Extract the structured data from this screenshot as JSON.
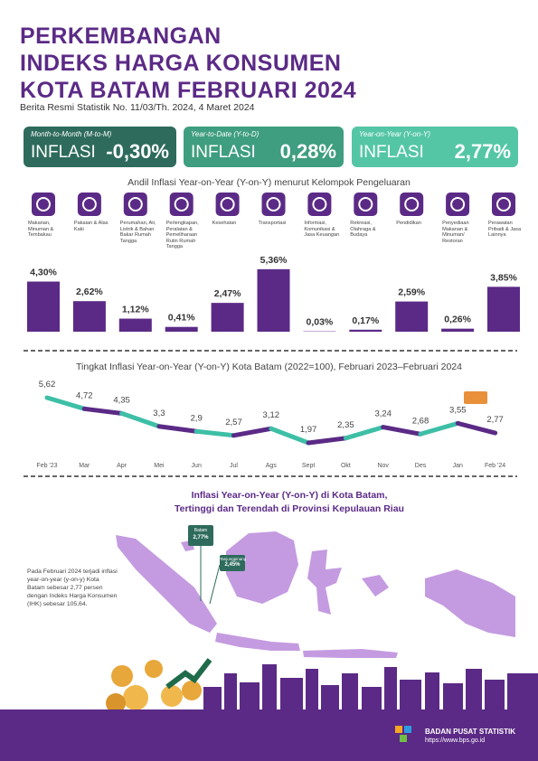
{
  "header": {
    "title": [
      "PERKEMBANGAN",
      "INDEKS HARGA KONSUMEN",
      "KOTA BATAM FEBRUARI 2024"
    ],
    "subtitle": "Berita Resmi Statistik No. 11/03/Th. 2024, 4 Maret 2024"
  },
  "stats": [
    {
      "label": "Month-to-Month (M-to-M)",
      "name": "INFLASI",
      "value": "-0,30%"
    },
    {
      "label": "Year-to-Date (Y-to-D)",
      "name": "INFLASI",
      "value": "0,28%"
    },
    {
      "label": "Year-on-Year (Y-on-Y)",
      "name": "INFLASI",
      "value": "2,77%"
    }
  ],
  "chart_data": [
    {
      "type": "bar",
      "title": "Andil Inflasi Year-on-Year (Y-on-Y) menurut Kelompok Pengeluaran",
      "categories": [
        "Makanan, Minuman & Tembakau",
        "Pakaian & Alas Kaki",
        "Perumahan, Air, Listrik & Bahan Bakar Rumah Tangga",
        "Perlengkapan, Peralatan & Pemeliharaan Rutin Rumah Tangga",
        "Kesehatan",
        "Transportasi",
        "Informasi, Komunikasi & Jasa Keuangan",
        "Rekreasi, Olahraga & Budaya",
        "Pendidikan",
        "Penyediaan Makanan & Minuman/ Restoran",
        "Perawatan Pribadi & Jasa Lainnya"
      ],
      "values": [
        4.3,
        2.62,
        1.12,
        0.41,
        2.47,
        5.36,
        0.03,
        0.17,
        2.59,
        0.26,
        3.85
      ],
      "value_labels": [
        "4,30%",
        "2,62%",
        "1,12%",
        "0,41%",
        "2,47%",
        "5,36%",
        "0,03%",
        "0,17%",
        "2,59%",
        "0,26%",
        "3,85%"
      ],
      "color": "#5b2a86"
    },
    {
      "type": "line",
      "title": "Tingkat Inflasi Year-on-Year (Y-on-Y) Kota Batam (2022=100), Februari 2023–Februari 2024",
      "categories": [
        "Feb '23",
        "Mar",
        "Apr",
        "Mei",
        "Jun",
        "Jul",
        "Ags",
        "Sept",
        "Okt",
        "Nov",
        "Des",
        "Jan",
        "Feb '24"
      ],
      "values": [
        5.62,
        4.72,
        4.35,
        3.3,
        2.9,
        2.57,
        3.12,
        1.97,
        2.35,
        3.24,
        2.68,
        3.55,
        2.77
      ],
      "value_labels": [
        "5,62",
        "4,72",
        "4,35",
        "3,3",
        "2,9",
        "2,57",
        "3,12",
        "1,97",
        "2,35",
        "3,24",
        "2,68",
        "3,55",
        "2,77"
      ],
      "colors": [
        "#3dbfa6",
        "#5b2a86"
      ]
    }
  ],
  "map": {
    "title": [
      "Inflasi Year-on-Year (Y-on-Y) di Kota Batam,",
      "Tertinggi dan Terendah di Provinsi Kepulauan Riau"
    ],
    "text": "Pada Februari 2024 terjadi inflasi year-on-year (y-on-y) Kota Batam sebesar 2,77 persen dengan Indeks Harga Konsumen (IHK) sebesar 105,64.",
    "callouts": [
      {
        "name": "Batam",
        "value": "2,77%"
      },
      {
        "name": "Tanjungpinang",
        "value": "2,45%"
      }
    ]
  },
  "footer": {
    "org": "BADAN PUSAT STATISTIK",
    "url": "https://www.bps.go.id"
  }
}
